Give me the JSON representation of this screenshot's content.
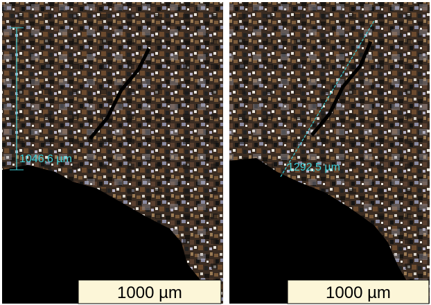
{
  "panels": [
    {
      "measurement": "1046,6 µm",
      "scale_bar": "1000 µm"
    },
    {
      "measurement": "1292,5 µm",
      "scale_bar": "1000 µm"
    }
  ]
}
